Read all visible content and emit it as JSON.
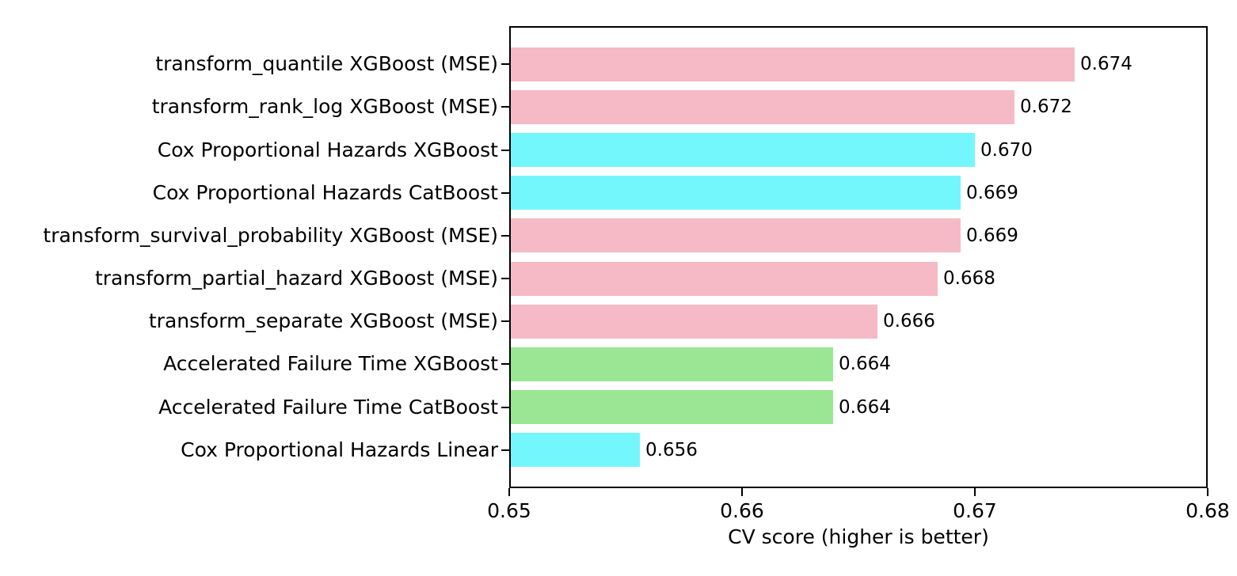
{
  "chart_data": {
    "type": "bar",
    "orientation": "horizontal",
    "title": "",
    "xlabel": "CV score (higher is better)",
    "ylabel": "",
    "xlim": [
      0.65,
      0.68
    ],
    "grid": false,
    "legend_position": "none",
    "xticks": [
      {
        "value": 0.65,
        "label": "0.65"
      },
      {
        "value": 0.66,
        "label": "0.66"
      },
      {
        "value": 0.67,
        "label": "0.67"
      },
      {
        "value": 0.68,
        "label": "0.68"
      }
    ],
    "bars": [
      {
        "category": "transform_quantile XGBoost (MSE)",
        "value": 0.674,
        "value_precise": 0.6743,
        "label": "0.674",
        "color": "#f5bac6"
      },
      {
        "category": "transform_rank_log XGBoost (MSE)",
        "value": 0.672,
        "value_precise": 0.6717,
        "label": "0.672",
        "color": "#f5bac6"
      },
      {
        "category": "Cox Proportional Hazards XGBoost",
        "value": 0.67,
        "value_precise": 0.67,
        "label": "0.670",
        "color": "#73f7fd"
      },
      {
        "category": "Cox Proportional Hazards CatBoost",
        "value": 0.669,
        "value_precise": 0.6694,
        "label": "0.669",
        "color": "#73f7fd"
      },
      {
        "category": "transform_survival_probability XGBoost (MSE)",
        "value": 0.669,
        "value_precise": 0.6694,
        "label": "0.669",
        "color": "#f5bac6"
      },
      {
        "category": "transform_partial_hazard XGBoost (MSE)",
        "value": 0.668,
        "value_precise": 0.6684,
        "label": "0.668",
        "color": "#f5bac6"
      },
      {
        "category": "transform_separate XGBoost (MSE)",
        "value": 0.666,
        "value_precise": 0.6658,
        "label": "0.666",
        "color": "#f5bac6"
      },
      {
        "category": "Accelerated Failure Time XGBoost",
        "value": 0.664,
        "value_precise": 0.6639,
        "label": "0.664",
        "color": "#9be694"
      },
      {
        "category": "Accelerated Failure Time CatBoost",
        "value": 0.664,
        "value_precise": 0.6639,
        "label": "0.664",
        "color": "#9be694"
      },
      {
        "category": "Cox Proportional Hazards Linear",
        "value": 0.656,
        "value_precise": 0.6556,
        "label": "0.656",
        "color": "#73f7fd"
      }
    ],
    "colors": {
      "mse_transform_bars": "#f5bac6",
      "cox_proportional_hazards_bars": "#73f7fd",
      "accelerated_failure_time_bars": "#9be694",
      "text": "#000000",
      "spine": "#000000",
      "background": "#ffffff"
    }
  }
}
